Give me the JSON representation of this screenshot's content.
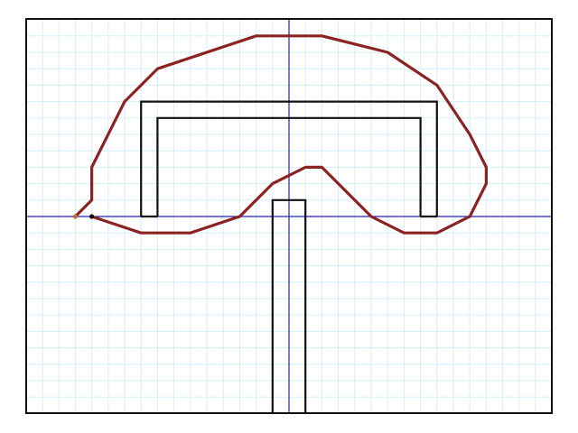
{
  "diagram": {
    "grid": {
      "minor_step": 1,
      "color": "#d6eefa"
    },
    "axes": {
      "color": "#1f1fbf"
    },
    "frame": {
      "color": "#111111"
    },
    "structure": {
      "color": "#111111",
      "description_shape": "U-shaped bracket above a vertical post",
      "u_outer": [
        [
          -9,
          0
        ],
        [
          -9,
          -7
        ],
        [
          9,
          -7
        ],
        [
          9,
          0
        ]
      ],
      "u_inner": [
        [
          -8,
          0
        ],
        [
          -8,
          -6
        ],
        [
          8,
          -6
        ],
        [
          8,
          0
        ]
      ],
      "post": [
        [
          -1,
          12
        ],
        [
          -1,
          -1
        ],
        [
          1,
          -1
        ],
        [
          1,
          12
        ]
      ]
    },
    "path": {
      "color": "#8b2323",
      "points": [
        [
          -13,
          0
        ],
        [
          -12,
          -1
        ],
        [
          -12,
          -3
        ],
        [
          -10,
          -7
        ],
        [
          -8,
          -9
        ],
        [
          -2,
          -11
        ],
        [
          2,
          -11
        ],
        [
          6,
          -10
        ],
        [
          9,
          -8
        ],
        [
          11,
          -5
        ],
        [
          12,
          -3
        ],
        [
          12,
          -2
        ],
        [
          11,
          0
        ],
        [
          9,
          1
        ],
        [
          7,
          1
        ],
        [
          5,
          0
        ],
        [
          2,
          -3
        ],
        [
          1,
          -3
        ],
        [
          -1,
          -2
        ],
        [
          -3,
          0
        ],
        [
          -6,
          1
        ],
        [
          -9,
          1
        ],
        [
          -12,
          0
        ]
      ],
      "start_marker_color": "#c0703a",
      "end_marker_color": "#111111"
    },
    "extent": {
      "x_min": -16,
      "x_max": 16,
      "y_min": -12,
      "y_max": 12
    }
  }
}
